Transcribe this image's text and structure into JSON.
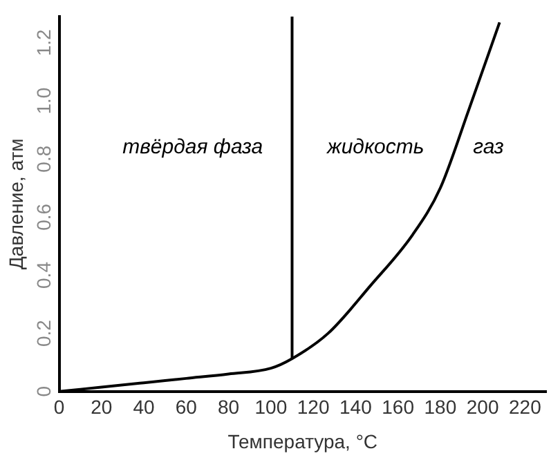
{
  "chart_data": {
    "type": "line",
    "xlabel": "Температура, °C",
    "ylabel": "Давление, атм",
    "xlim": [
      0,
      230
    ],
    "xticks": [
      0,
      20,
      40,
      60,
      80,
      100,
      120,
      140,
      160,
      180,
      200,
      220
    ],
    "ylim": [
      0,
      1.29
    ],
    "yticks": [
      0,
      0.2,
      0.4,
      0.6,
      0.8,
      {
        "value": 1,
        "label": "1.0"
      },
      1.2
    ],
    "grid": false,
    "legend": false,
    "marker": "none",
    "line_style": "solid",
    "series": [
      {
        "color": "#000000",
        "x": [
          0,
          20,
          40,
          60,
          80,
          100,
          110,
          127,
          147,
          167,
          180,
          193.5,
          208
        ],
        "values": [
          0,
          0.015,
          0.03,
          0.045,
          0.06,
          0.08,
          0.113,
          0.2,
          0.364,
          0.54,
          0.7,
          0.97,
          1.27
        ]
      },
      {
        "color": "#000000",
        "x": [
          110,
          110
        ],
        "values": [
          0.113,
          1.29
        ]
      }
    ],
    "annotations": [
      "твёрдая фаза",
      "жидкость",
      "газ"
    ]
  }
}
